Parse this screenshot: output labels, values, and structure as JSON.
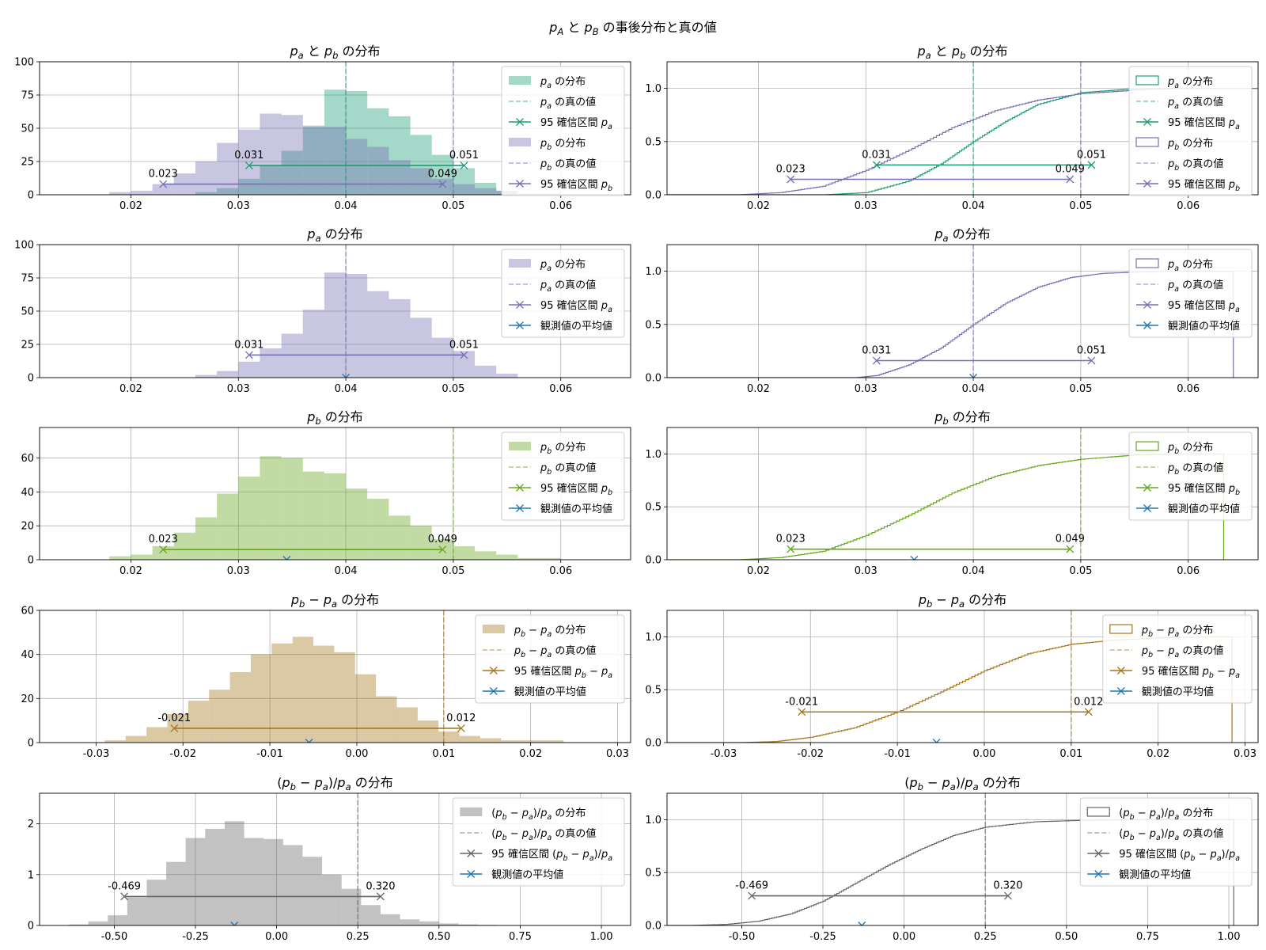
{
  "suptitle": "p_A と p_B の事後分布と真の値",
  "chart_data": [
    {
      "id": "r0h",
      "type": "bar",
      "kind": "hist",
      "title": "p_a と p_b の分布",
      "xlim": [
        0.0115,
        0.0665
      ],
      "xticks": [
        "0.02",
        "0.03",
        "0.04",
        "0.05",
        "0.06"
      ],
      "ylim": [
        0,
        100
      ],
      "yticks": [
        "0",
        "25",
        "50",
        "75",
        "100"
      ],
      "grid": true,
      "legend": "upper right",
      "series": [
        {
          "name": "p_a の分布",
          "color": "#1b9e77",
          "alpha": 0.4,
          "edges": [
            0.026,
            0.028,
            0.03,
            0.032,
            0.034,
            0.036,
            0.038,
            0.04,
            0.042,
            0.044,
            0.046,
            0.048,
            0.05,
            0.052,
            0.054,
            0.056
          ],
          "values": [
            2,
            5,
            12,
            22,
            33,
            51,
            79,
            78,
            65,
            59,
            45,
            30,
            20,
            9,
            3
          ]
        },
        {
          "name": "p_b の分布",
          "color": "#7570b3",
          "alpha": 0.4,
          "edges": [
            0.018,
            0.02,
            0.022,
            0.024,
            0.026,
            0.028,
            0.03,
            0.032,
            0.034,
            0.036,
            0.038,
            0.04,
            0.042,
            0.044,
            0.046,
            0.048,
            0.05,
            0.052,
            0.054,
            0.056,
            0.058,
            0.06
          ],
          "values": [
            2,
            3,
            8,
            16,
            25,
            39,
            49,
            61,
            60,
            52,
            51,
            42,
            36,
            26,
            20,
            12,
            8,
            5,
            3,
            1,
            1
          ]
        }
      ],
      "true_values": [
        {
          "name": "p_a の真の値",
          "x": 0.04,
          "color": "#1b9e77"
        },
        {
          "name": "p_b の真の値",
          "x": 0.05,
          "color": "#7570b3"
        }
      ],
      "intervals": [
        {
          "name": "95 確信区間 p_a",
          "lo": 0.031,
          "hi": 0.051,
          "y": 22,
          "lo_label": "0.031",
          "hi_label": "0.051",
          "color": "#1b9e77"
        },
        {
          "name": "95 確信区間 p_b",
          "lo": 0.023,
          "hi": 0.049,
          "y": 8,
          "lo_label": "0.023",
          "hi_label": "0.049",
          "color": "#7570b3"
        }
      ]
    },
    {
      "id": "r0c",
      "type": "line",
      "kind": "ecdf",
      "title": "p_a と p_b の分布",
      "xlim": [
        0.0115,
        0.0665
      ],
      "xticks": [
        "0.02",
        "0.03",
        "0.04",
        "0.05",
        "0.06"
      ],
      "ylim": [
        0,
        1.25
      ],
      "yticks": [
        "0.0",
        "0.5",
        "1.0"
      ],
      "grid": true,
      "legend": "upper right",
      "series": [
        {
          "name": "p_a の分布",
          "color": "#1b9e77",
          "x": [
            0.026,
            0.03,
            0.034,
            0.037,
            0.04,
            0.043,
            0.046,
            0.05,
            0.054,
            0.057
          ],
          "y": [
            0.0,
            0.02,
            0.13,
            0.29,
            0.5,
            0.69,
            0.85,
            0.96,
            0.99,
            1.0
          ]
        },
        {
          "name": "p_b の分布",
          "color": "#7570b3",
          "x": [
            0.018,
            0.022,
            0.026,
            0.03,
            0.034,
            0.038,
            0.042,
            0.046,
            0.05,
            0.056,
            0.06
          ],
          "y": [
            0.0,
            0.02,
            0.08,
            0.23,
            0.42,
            0.63,
            0.79,
            0.89,
            0.95,
            0.99,
            1.0
          ]
        }
      ],
      "true_values": [
        {
          "name": "p_a の真の値",
          "x": 0.04,
          "color": "#1b9e77"
        },
        {
          "name": "p_b の真の値",
          "x": 0.05,
          "color": "#7570b3"
        }
      ],
      "intervals": [
        {
          "name": "95 確信区間 p_a",
          "lo": 0.031,
          "hi": 0.051,
          "y": 0.28,
          "lo_label": "0.031",
          "hi_label": "0.051",
          "color": "#1b9e77"
        },
        {
          "name": "95 確信区間 p_b",
          "lo": 0.023,
          "hi": 0.049,
          "y": 0.145,
          "lo_label": "0.023",
          "hi_label": "0.049",
          "color": "#7570b3"
        }
      ]
    },
    {
      "id": "r1h",
      "type": "bar",
      "kind": "hist",
      "title": "p_a の分布",
      "xlim": [
        0.0115,
        0.0665
      ],
      "xticks": [
        "0.02",
        "0.03",
        "0.04",
        "0.05",
        "0.06"
      ],
      "ylim": [
        0,
        100
      ],
      "yticks": [
        "0",
        "25",
        "50",
        "75",
        "100"
      ],
      "grid": true,
      "legend": "upper right",
      "series": [
        {
          "name": "p_a の分布",
          "color": "#7570b3",
          "alpha": 0.4,
          "edges": [
            0.026,
            0.028,
            0.03,
            0.032,
            0.034,
            0.036,
            0.038,
            0.04,
            0.042,
            0.044,
            0.046,
            0.048,
            0.05,
            0.052,
            0.054,
            0.056
          ],
          "values": [
            2,
            5,
            12,
            22,
            33,
            51,
            79,
            78,
            65,
            59,
            45,
            30,
            20,
            9,
            3
          ]
        }
      ],
      "true_values": [
        {
          "name": "p_a の真の値",
          "x": 0.04,
          "color": "#7570b3"
        }
      ],
      "intervals": [
        {
          "name": "95 確信区間 p_a",
          "lo": 0.031,
          "hi": 0.051,
          "y": 17,
          "lo_label": "0.031",
          "hi_label": "0.051",
          "color": "#7570b3"
        }
      ],
      "observed": {
        "name": "観測値の平均値",
        "x": 0.04,
        "color": "#1f77b4"
      }
    },
    {
      "id": "r1c",
      "type": "line",
      "kind": "ecdf",
      "title": "p_a の分布",
      "xlim": [
        0.0115,
        0.0665
      ],
      "xticks": [
        "0.02",
        "0.03",
        "0.04",
        "0.05",
        "0.06"
      ],
      "ylim": [
        0,
        1.25
      ],
      "yticks": [
        "0.0",
        "0.5",
        "1.0"
      ],
      "grid": true,
      "legend": "upper right",
      "vline": 0.0642,
      "series": [
        {
          "name": "p_a の分布",
          "color": "#7570b3",
          "x": [
            0.029,
            0.031,
            0.034,
            0.037,
            0.04,
            0.043,
            0.046,
            0.049,
            0.052,
            0.056,
            0.06
          ],
          "y": [
            0.0,
            0.02,
            0.12,
            0.28,
            0.5,
            0.7,
            0.85,
            0.94,
            0.98,
            0.995,
            1.0
          ]
        }
      ],
      "true_values": [
        {
          "name": "p_a の真の値",
          "x": 0.04,
          "color": "#7570b3"
        }
      ],
      "intervals": [
        {
          "name": "95 確信区間 p_a",
          "lo": 0.031,
          "hi": 0.051,
          "y": 0.16,
          "lo_label": "0.031",
          "hi_label": "0.051",
          "color": "#7570b3"
        }
      ],
      "observed": {
        "name": "観測値の平均値",
        "x": 0.04,
        "color": "#1f77b4"
      }
    },
    {
      "id": "r2h",
      "type": "bar",
      "kind": "hist",
      "title": "p_b の分布",
      "xlim": [
        0.0115,
        0.0665
      ],
      "xticks": [
        "0.02",
        "0.03",
        "0.04",
        "0.05",
        "0.06"
      ],
      "ylim": [
        0,
        78
      ],
      "yticks": [
        "0",
        "20",
        "40",
        "60"
      ],
      "grid": true,
      "legend": "upper right",
      "series": [
        {
          "name": "p_b の分布",
          "color": "#66a61e",
          "alpha": 0.4,
          "edges": [
            0.018,
            0.02,
            0.022,
            0.024,
            0.026,
            0.028,
            0.03,
            0.032,
            0.034,
            0.036,
            0.038,
            0.04,
            0.042,
            0.044,
            0.046,
            0.048,
            0.05,
            0.052,
            0.054,
            0.056,
            0.058,
            0.06
          ],
          "values": [
            2,
            3,
            8,
            16,
            25,
            39,
            49,
            61,
            60,
            52,
            51,
            42,
            36,
            26,
            20,
            12,
            8,
            5,
            3,
            1,
            1
          ]
        }
      ],
      "true_values": [
        {
          "name": "p_b の真の値",
          "x": 0.05,
          "color": "#66a61e"
        }
      ],
      "intervals": [
        {
          "name": "95 確信区間 p_b",
          "lo": 0.023,
          "hi": 0.049,
          "y": 6,
          "lo_label": "0.023",
          "hi_label": "0.049",
          "color": "#66a61e"
        }
      ],
      "observed": {
        "name": "観測値の平均値",
        "x": 0.0345,
        "color": "#1f77b4"
      }
    },
    {
      "id": "r2c",
      "type": "line",
      "kind": "ecdf",
      "title": "p_b の分布",
      "xlim": [
        0.0115,
        0.0665
      ],
      "xticks": [
        "0.02",
        "0.03",
        "0.04",
        "0.05",
        "0.06"
      ],
      "ylim": [
        0,
        1.25
      ],
      "yticks": [
        "0.0",
        "0.5",
        "1.0"
      ],
      "grid": true,
      "legend": "upper right",
      "vline": 0.0633,
      "series": [
        {
          "name": "p_b の分布",
          "color": "#66a61e",
          "x": [
            0.018,
            0.022,
            0.026,
            0.03,
            0.034,
            0.038,
            0.042,
            0.046,
            0.05,
            0.055,
            0.06
          ],
          "y": [
            0.0,
            0.02,
            0.08,
            0.23,
            0.42,
            0.63,
            0.79,
            0.89,
            0.95,
            0.99,
            1.0
          ]
        }
      ],
      "true_values": [
        {
          "name": "p_b の真の値",
          "x": 0.05,
          "color": "#66a61e"
        }
      ],
      "intervals": [
        {
          "name": "95 確信区間 p_b",
          "lo": 0.023,
          "hi": 0.049,
          "y": 0.1,
          "lo_label": "0.023",
          "hi_label": "0.049",
          "color": "#66a61e"
        }
      ],
      "observed": {
        "name": "観測値の平均値",
        "x": 0.0345,
        "color": "#1f77b4"
      }
    },
    {
      "id": "r3h",
      "type": "bar",
      "kind": "hist",
      "title": "p_b − p_a の分布",
      "xlim": [
        -0.0365,
        0.0315
      ],
      "xticks": [
        "-0.03",
        "-0.02",
        "-0.01",
        "0.00",
        "0.01",
        "0.02",
        "0.03"
      ],
      "ylim": [
        0,
        60
      ],
      "yticks": [
        "0",
        "20",
        "40",
        "60"
      ],
      "grid": true,
      "legend": "upper right",
      "series": [
        {
          "name": "p_b − p_a の分布",
          "color": "#a6761d",
          "alpha": 0.4,
          "edges": [
            -0.029,
            -0.0266,
            -0.0242,
            -0.0218,
            -0.0194,
            -0.017,
            -0.0146,
            -0.0122,
            -0.0098,
            -0.0074,
            -0.005,
            -0.0026,
            -0.0002,
            0.0022,
            0.0046,
            0.007,
            0.0094,
            0.0118,
            0.0142,
            0.0166,
            0.019,
            0.0214,
            0.0238
          ],
          "values": [
            1,
            3,
            7,
            13,
            19,
            24,
            32,
            40,
            45,
            48,
            44,
            41,
            31,
            21,
            16,
            10,
            5,
            3,
            2,
            1,
            1,
            1
          ]
        }
      ],
      "true_values": [
        {
          "name": "p_b − p_a の真の値",
          "x": 0.01,
          "color": "#a6761d"
        }
      ],
      "intervals": [
        {
          "name": "95 確信区間 p_b − p_a",
          "lo": -0.021,
          "hi": 0.012,
          "y": 6.5,
          "lo_label": "-0.021",
          "hi_label": "0.012",
          "color": "#a6761d"
        }
      ],
      "observed": {
        "name": "観測値の平均値",
        "x": -0.0055,
        "color": "#1f77b4"
      }
    },
    {
      "id": "r3c",
      "type": "line",
      "kind": "ecdf",
      "title": "p_b − p_a の分布",
      "xlim": [
        -0.0365,
        0.0315
      ],
      "xticks": [
        "-0.03",
        "-0.02",
        "-0.01",
        "0.00",
        "0.01",
        "0.02",
        "0.03"
      ],
      "ylim": [
        0,
        1.25
      ],
      "yticks": [
        "0.0",
        "0.5",
        "1.0"
      ],
      "grid": true,
      "legend": "upper right",
      "vline": 0.0285,
      "series": [
        {
          "name": "p_b − p_a の分布",
          "color": "#a6761d",
          "x": [
            -0.028,
            -0.024,
            -0.02,
            -0.015,
            -0.01,
            -0.005,
            0.0,
            0.005,
            0.01,
            0.015,
            0.02,
            0.026
          ],
          "y": [
            0.0,
            0.01,
            0.05,
            0.14,
            0.29,
            0.48,
            0.68,
            0.84,
            0.93,
            0.97,
            0.99,
            1.0
          ]
        }
      ],
      "true_values": [
        {
          "name": "p_b − p_a の真の値",
          "x": 0.01,
          "color": "#a6761d"
        }
      ],
      "intervals": [
        {
          "name": "95 確信区間 p_b − p_a",
          "lo": -0.021,
          "hi": 0.012,
          "y": 0.29,
          "lo_label": "-0.021",
          "hi_label": "0.012",
          "color": "#a6761d"
        }
      ],
      "observed": {
        "name": "観測値の平均値",
        "x": -0.0055,
        "color": "#1f77b4"
      }
    },
    {
      "id": "r4h",
      "type": "bar",
      "kind": "hist",
      "title": "(p_b − p_a)/p_a の分布",
      "xlim": [
        -0.73,
        1.09
      ],
      "xticks": [
        "-0.50",
        "-0.25",
        "0.00",
        "0.25",
        "0.50",
        "0.75",
        "1.00"
      ],
      "ylim": [
        0,
        2.6
      ],
      "yticks": [
        "0",
        "1",
        "2"
      ],
      "grid": true,
      "legend": "upper right",
      "series": [
        {
          "name": "(p_b − p_a)/p_a の分布",
          "color": "#666666",
          "alpha": 0.4,
          "edges": [
            -0.64,
            -0.58,
            -0.52,
            -0.46,
            -0.4,
            -0.34,
            -0.28,
            -0.22,
            -0.16,
            -0.1,
            -0.04,
            0.02,
            0.08,
            0.14,
            0.2,
            0.26,
            0.32,
            0.38,
            0.44,
            0.5,
            0.56,
            0.62,
            0.68
          ],
          "values": [
            0.02,
            0.08,
            0.2,
            0.55,
            0.9,
            1.25,
            1.72,
            1.9,
            2.05,
            1.72,
            1.7,
            1.58,
            1.35,
            1.0,
            0.72,
            0.4,
            0.22,
            0.12,
            0.08,
            0.04,
            0.02,
            0.01
          ]
        }
      ],
      "true_values": [
        {
          "name": "(p_b − p_a)/p_a の真の値",
          "x": 0.25,
          "color": "#666666"
        }
      ],
      "intervals": [
        {
          "name": "95 確信区間 (p_b − p_a)/p_a",
          "lo": -0.469,
          "hi": 0.32,
          "y": 0.57,
          "lo_label": "-0.469",
          "hi_label": "0.320",
          "color": "#666666"
        }
      ],
      "observed": {
        "name": "観測値の平均値",
        "x": -0.13,
        "color": "#1f77b4"
      }
    },
    {
      "id": "r4c",
      "type": "line",
      "kind": "ecdf",
      "title": "(p_b − p_a)/p_a の分布",
      "xlim": [
        -0.73,
        1.09
      ],
      "xticks": [
        "-0.50",
        "-0.25",
        "0.00",
        "0.25",
        "0.50",
        "0.75",
        "1.00"
      ],
      "ylim": [
        0,
        1.25
      ],
      "yticks": [
        "0.0",
        "0.5",
        "1.0"
      ],
      "grid": true,
      "legend": "upper right",
      "vline": 1.015,
      "series": [
        {
          "name": "(p_b − p_a)/p_a の分布",
          "color": "#666666",
          "x": [
            -0.66,
            -0.55,
            -0.45,
            -0.35,
            -0.25,
            -0.15,
            -0.05,
            0.05,
            0.15,
            0.25,
            0.4,
            0.55,
            0.7
          ],
          "y": [
            0.0,
            0.01,
            0.04,
            0.11,
            0.23,
            0.4,
            0.57,
            0.72,
            0.85,
            0.93,
            0.98,
            0.995,
            1.0
          ]
        }
      ],
      "true_values": [
        {
          "name": "(p_b − p_a)/p_a の真の値",
          "x": 0.25,
          "color": "#666666"
        }
      ],
      "intervals": [
        {
          "name": "95 確信区間 (p_b − p_a)/p_a",
          "lo": -0.469,
          "hi": 0.32,
          "y": 0.28,
          "lo_label": "-0.469",
          "hi_label": "0.320",
          "color": "#666666"
        }
      ],
      "observed": {
        "name": "観測値の平均値",
        "x": -0.13,
        "color": "#1f77b4"
      }
    }
  ]
}
